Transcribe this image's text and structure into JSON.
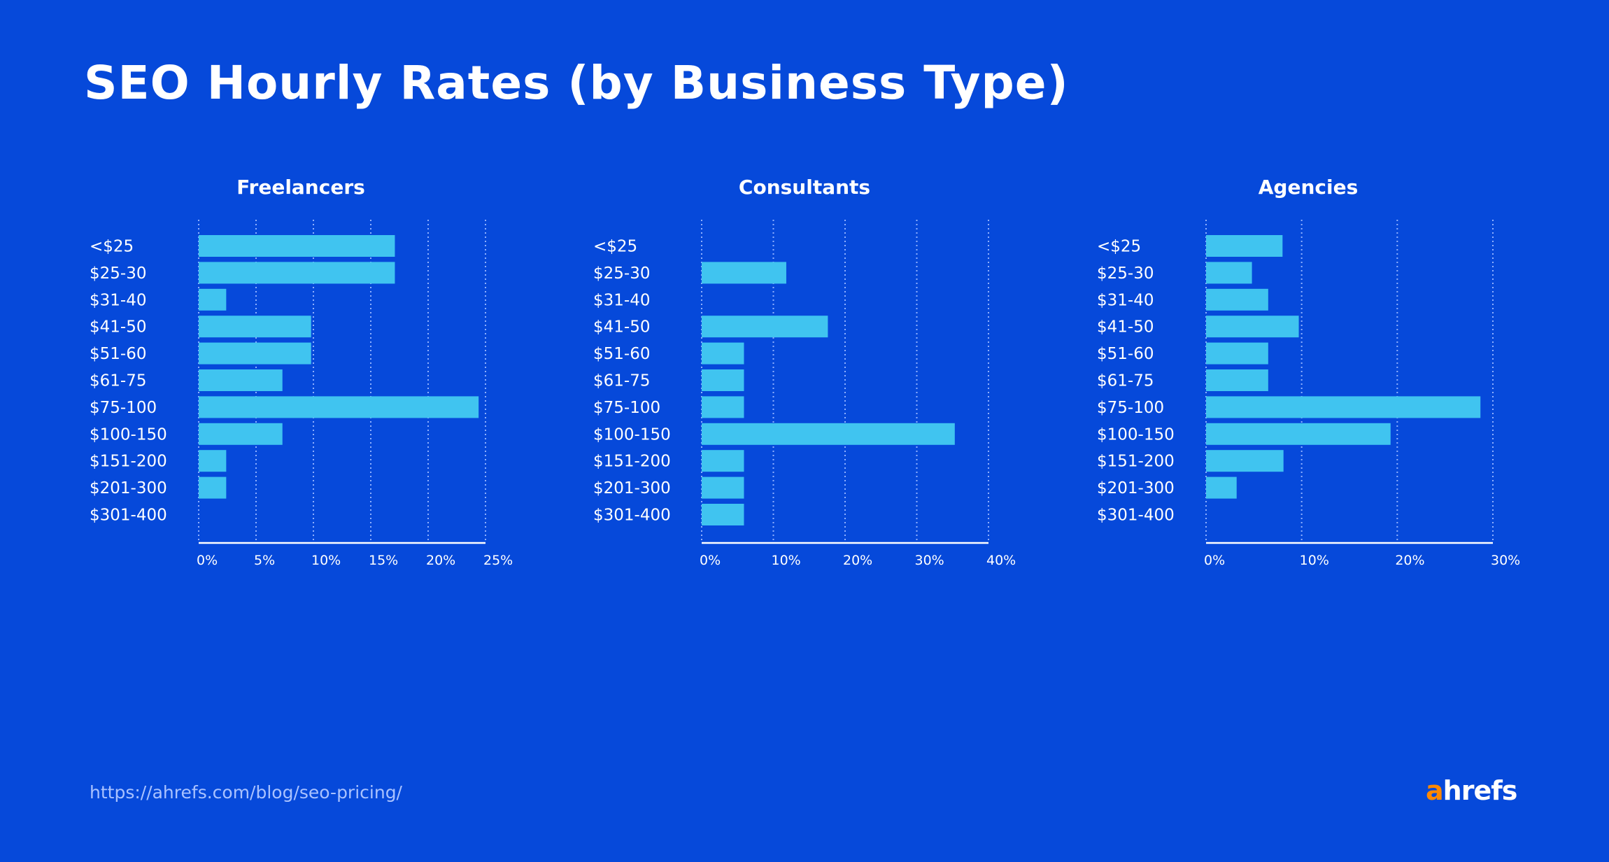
{
  "title": "SEO Hourly Rates (by Business Type)",
  "footer": {
    "url": "https://ahrefs.com/blog/seo-pricing/",
    "logo_a": "a",
    "logo_rest": "hrefs"
  },
  "colors": {
    "background": "#0649da",
    "bar": "#40c4f0",
    "grid": "#8fb0ff",
    "logo_accent": "#ff8800"
  },
  "chart_data": [
    {
      "type": "bar",
      "orientation": "horizontal",
      "title": "Freelancers",
      "categories": [
        "<$25",
        "$25-30",
        "$31-40",
        "$41-50",
        "$51-60",
        "$61-75",
        "$75-100",
        "$100-150",
        "$151-200",
        "$201-300",
        "$301-400"
      ],
      "values": [
        17.1,
        17.1,
        2.4,
        9.8,
        9.8,
        7.3,
        24.4,
        7.3,
        2.4,
        2.4,
        0
      ],
      "xlim": [
        0,
        25
      ],
      "ticks": [
        "0%",
        "5%",
        "10%",
        "15%",
        "20%",
        "25%"
      ],
      "tick_values": [
        0,
        5,
        10,
        15,
        20,
        25
      ],
      "grid": true
    },
    {
      "type": "bar",
      "orientation": "horizontal",
      "title": "Consultants",
      "categories": [
        "<$25",
        "$25-30",
        "$31-40",
        "$41-50",
        "$51-60",
        "$61-75",
        "$75-100",
        "$100-150",
        "$151-200",
        "$201-300",
        "$301-400"
      ],
      "values": [
        0,
        11.8,
        0,
        17.6,
        5.9,
        5.9,
        5.9,
        35.3,
        5.9,
        5.9,
        5.9
      ],
      "xlim": [
        0,
        40
      ],
      "ticks": [
        "0%",
        "10%",
        "20%",
        "30%",
        "40%"
      ],
      "tick_values": [
        0,
        10,
        20,
        30,
        40
      ],
      "grid": true
    },
    {
      "type": "bar",
      "orientation": "horizontal",
      "title": "Agencies",
      "categories": [
        "<$25",
        "$25-30",
        "$31-40",
        "$41-50",
        "$51-60",
        "$61-75",
        "$75-100",
        "$100-150",
        "$151-200",
        "$201-300",
        "$301-400"
      ],
      "values": [
        8.0,
        4.8,
        6.5,
        9.7,
        6.5,
        6.5,
        28.7,
        19.3,
        8.1,
        3.2,
        0
      ],
      "xlim": [
        0,
        30
      ],
      "ticks": [
        "0%",
        "10%",
        "20%",
        "30%"
      ],
      "tick_values": [
        0,
        10,
        20,
        30
      ],
      "grid": true
    }
  ]
}
